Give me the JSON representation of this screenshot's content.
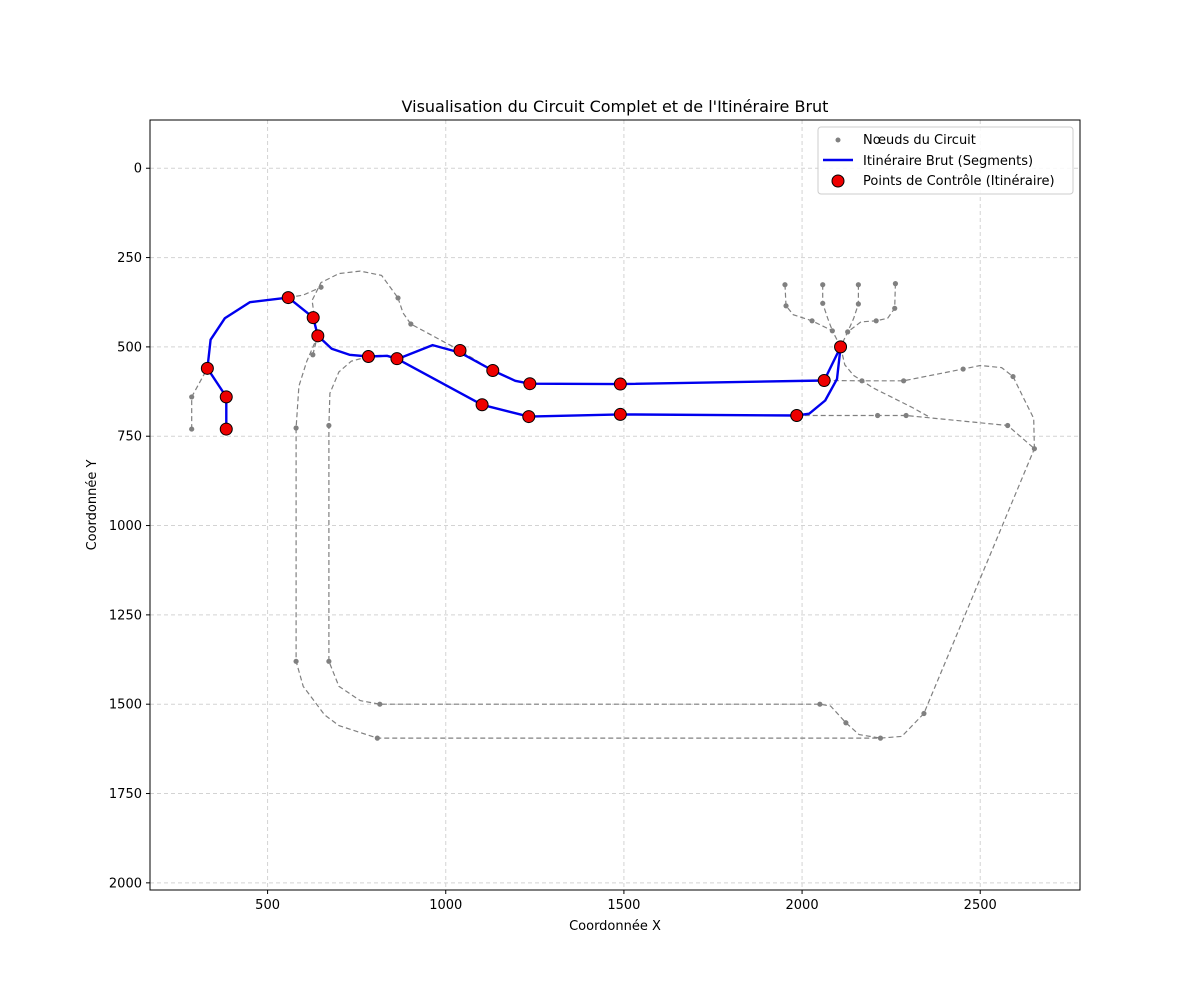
{
  "chart_data": {
    "type": "line",
    "title": "Visualisation du Circuit Complet et de l'Itinéraire Brut",
    "xlabel": "Coordonnée X",
    "ylabel": "Coordonnée Y",
    "xlim": [
      170,
      2780
    ],
    "ylim": [
      2020,
      -135
    ],
    "y_inverted": true,
    "grid": true,
    "legend_position": "top-right",
    "xticks": [
      500,
      1000,
      1500,
      2000,
      2500
    ],
    "yticks": [
      0,
      250,
      500,
      750,
      1000,
      1250,
      1500,
      1750,
      2000
    ],
    "legend": [
      {
        "label": "Nœuds du Circuit",
        "marker": "dot"
      },
      {
        "label": "Itinéraire Brut (Segments)",
        "marker": "line"
      },
      {
        "label": "Points de Contrôle (Itinéraire)",
        "marker": "big-dot"
      }
    ],
    "colors": {
      "nodes": "#808080",
      "circuit": "#808080",
      "route": "#0000ee",
      "checkpoints": "#ee0000",
      "grid": "#d3d3d3"
    },
    "series": [
      {
        "name": "Nœuds du Circuit",
        "kind": "scatter",
        "points": [
          [
            287,
            640
          ],
          [
            287,
            730
          ],
          [
            384,
            640
          ],
          [
            384,
            730
          ],
          [
            558,
            362
          ],
          [
            650,
            333
          ],
          [
            627,
            522
          ],
          [
            866,
            363
          ],
          [
            902,
            436
          ],
          [
            580,
            727
          ],
          [
            672,
            720
          ],
          [
            580,
            1380
          ],
          [
            672,
            1380
          ],
          [
            815,
            1500
          ],
          [
            808,
            1595
          ],
          [
            2050,
            1500
          ],
          [
            2123,
            1552
          ],
          [
            2220,
            1595
          ],
          [
            2342,
            1526
          ],
          [
            2652,
            785
          ],
          [
            2577,
            720
          ],
          [
            2592,
            583
          ],
          [
            2452,
            562
          ],
          [
            2285,
            595
          ],
          [
            2168,
            595
          ],
          [
            2212,
            692
          ],
          [
            2292,
            692
          ],
          [
            1952,
            326
          ],
          [
            1955,
            385
          ],
          [
            2058,
            326
          ],
          [
            2058,
            378
          ],
          [
            2028,
            427
          ],
          [
            2085,
            455
          ],
          [
            2158,
            326
          ],
          [
            2158,
            380
          ],
          [
            2128,
            458
          ],
          [
            2208,
            427
          ],
          [
            2262,
            323
          ],
          [
            2260,
            392
          ]
        ]
      },
      {
        "name": "Itinéraire Brut (Segments)",
        "kind": "line",
        "points": [
          [
            384,
            730
          ],
          [
            384,
            640
          ],
          [
            331,
            560
          ],
          [
            340,
            480
          ],
          [
            380,
            420
          ],
          [
            450,
            375
          ],
          [
            558,
            362
          ],
          [
            628,
            418
          ],
          [
            641,
            469
          ],
          [
            680,
            505
          ],
          [
            730,
            522
          ],
          [
            783,
            527
          ],
          [
            835,
            525
          ],
          [
            863,
            533
          ],
          [
            1102,
            662
          ],
          [
            1233,
            695
          ],
          [
            1490,
            689
          ],
          [
            1985,
            692
          ],
          [
            2020,
            687
          ],
          [
            2065,
            650
          ],
          [
            2098,
            590
          ],
          [
            2108,
            500
          ],
          [
            2062,
            594
          ],
          [
            1490,
            604
          ],
          [
            1236,
            603
          ],
          [
            1195,
            595
          ],
          [
            1132,
            566
          ],
          [
            1040,
            516
          ],
          [
            963,
            495
          ],
          [
            862,
            535
          ]
        ]
      },
      {
        "name": "Points de Contrôle (Itinéraire)",
        "kind": "scatter",
        "points": [
          [
            384,
            730
          ],
          [
            384,
            640
          ],
          [
            331,
            560
          ],
          [
            558,
            362
          ],
          [
            628,
            418
          ],
          [
            641,
            469
          ],
          [
            783,
            527
          ],
          [
            863,
            533
          ],
          [
            1040,
            510
          ],
          [
            1132,
            566
          ],
          [
            1236,
            603
          ],
          [
            1490,
            604
          ],
          [
            1102,
            662
          ],
          [
            1233,
            695
          ],
          [
            1490,
            689
          ],
          [
            1985,
            692
          ],
          [
            2062,
            594
          ],
          [
            2108,
            500
          ]
        ]
      }
    ],
    "circuit_paths": [
      [
        [
          287,
          730
        ],
        [
          287,
          640
        ],
        [
          331,
          560
        ]
      ],
      [
        [
          558,
          362
        ],
        [
          600,
          355
        ],
        [
          650,
          333
        ]
      ],
      [
        [
          627,
          522
        ],
        [
          640,
          470
        ],
        [
          632,
          420
        ],
        [
          625,
          370
        ],
        [
          650,
          320
        ],
        [
          700,
          295
        ],
        [
          760,
          288
        ],
        [
          820,
          300
        ],
        [
          866,
          363
        ]
      ],
      [
        [
          866,
          363
        ],
        [
          880,
          405
        ],
        [
          902,
          436
        ],
        [
          1040,
          510
        ],
        [
          1132,
          566
        ]
      ],
      [
        [
          641,
          469
        ],
        [
          610,
          540
        ],
        [
          588,
          610
        ],
        [
          580,
          727
        ],
        [
          580,
          1380
        ],
        [
          600,
          1450
        ],
        [
          660,
          1530
        ],
        [
          700,
          1560
        ],
        [
          808,
          1595
        ],
        [
          2220,
          1595
        ]
      ],
      [
        [
          783,
          527
        ],
        [
          735,
          540
        ],
        [
          700,
          570
        ],
        [
          675,
          630
        ],
        [
          672,
          720
        ],
        [
          672,
          1380
        ],
        [
          700,
          1450
        ],
        [
          760,
          1490
        ],
        [
          815,
          1500
        ],
        [
          2050,
          1500
        ],
        [
          2080,
          1505
        ],
        [
          2123,
          1552
        ],
        [
          2160,
          1585
        ],
        [
          2220,
          1595
        ]
      ],
      [
        [
          2220,
          1595
        ],
        [
          2280,
          1590
        ],
        [
          2342,
          1526
        ],
        [
          2652,
          785
        ]
      ],
      [
        [
          2652,
          785
        ],
        [
          2650,
          700
        ],
        [
          2620,
          640
        ],
        [
          2592,
          583
        ],
        [
          2560,
          558
        ],
        [
          2500,
          552
        ],
        [
          2452,
          562
        ],
        [
          2285,
          595
        ],
        [
          2168,
          595
        ],
        [
          2062,
          594
        ]
      ],
      [
        [
          1985,
          692
        ],
        [
          2212,
          692
        ],
        [
          2292,
          692
        ],
        [
          2577,
          720
        ],
        [
          2652,
          785
        ]
      ],
      [
        [
          2108,
          500
        ],
        [
          2120,
          550
        ],
        [
          2145,
          580
        ],
        [
          2200,
          615
        ],
        [
          2260,
          645
        ],
        [
          2310,
          670
        ],
        [
          2355,
          695
        ]
      ],
      [
        [
          1952,
          326
        ],
        [
          1955,
          385
        ],
        [
          1975,
          410
        ],
        [
          2028,
          427
        ],
        [
          2085,
          455
        ],
        [
          2108,
          500
        ]
      ],
      [
        [
          2058,
          326
        ],
        [
          2058,
          378
        ],
        [
          2072,
          420
        ],
        [
          2085,
          455
        ]
      ],
      [
        [
          2158,
          326
        ],
        [
          2158,
          380
        ],
        [
          2145,
          420
        ],
        [
          2128,
          458
        ],
        [
          2108,
          500
        ]
      ],
      [
        [
          2262,
          323
        ],
        [
          2260,
          392
        ],
        [
          2240,
          420
        ],
        [
          2208,
          427
        ],
        [
          2165,
          430
        ],
        [
          2128,
          458
        ]
      ]
    ]
  }
}
